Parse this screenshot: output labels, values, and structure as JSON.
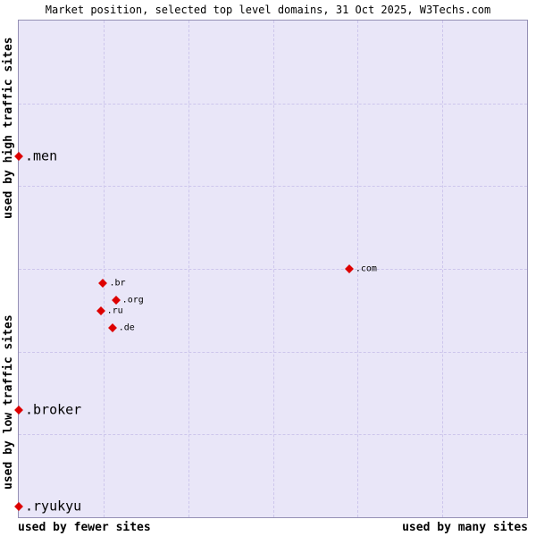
{
  "colors": {
    "plot_bg": "#e9e6f8",
    "plot_border": "#9590b5",
    "grid": "#cdc6ec",
    "marker": "#dd0000",
    "text": "#000000"
  },
  "chart_data": {
    "type": "scatter",
    "title": "Market position, selected top level domains, 31 Oct 2025, W3Techs.com",
    "axis_labels": {
      "left_top": "used by high traffic sites",
      "left_bottom": "used by low traffic sites",
      "bottom_left": "used by fewer sites",
      "bottom_right": "used by many sites"
    },
    "grid": {
      "cols": 6,
      "rows": 6,
      "style": "dashed"
    },
    "axis_ranges": {
      "x": [
        0,
        1
      ],
      "y": [
        0,
        1
      ],
      "note": "qualitative axes, positions normalized 0-1 from top-left of plot"
    },
    "points": [
      {
        "label": ".men",
        "x": 0.0,
        "y": 0.274,
        "emphasis": "large"
      },
      {
        "label": ".broker",
        "x": 0.0,
        "y": 0.785,
        "emphasis": "large"
      },
      {
        "label": ".ryukyu",
        "x": 0.0,
        "y": 0.979,
        "emphasis": "large"
      },
      {
        "label": ".com",
        "x": 0.65,
        "y": 0.5,
        "emphasis": "small"
      },
      {
        "label": ".br",
        "x": 0.166,
        "y": 0.529,
        "emphasis": "small"
      },
      {
        "label": ".org",
        "x": 0.191,
        "y": 0.563,
        "emphasis": "small"
      },
      {
        "label": ".ru",
        "x": 0.161,
        "y": 0.584,
        "emphasis": "small"
      },
      {
        "label": ".de",
        "x": 0.184,
        "y": 0.618,
        "emphasis": "small"
      }
    ]
  }
}
